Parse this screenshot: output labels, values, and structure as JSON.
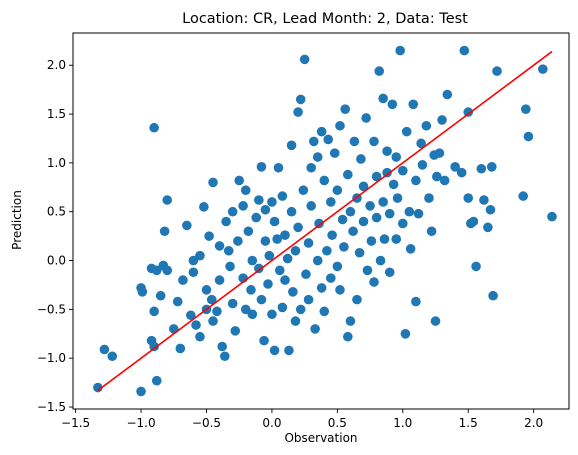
{
  "chart_data": {
    "type": "scatter",
    "title": "Location: CR, Lead Month: 2, Data: Test",
    "xlabel": "Observation",
    "ylabel": "Prediction",
    "xlim": [
      -1.52,
      2.27
    ],
    "ylim": [
      -1.52,
      2.33
    ],
    "xticks": [
      -1.5,
      -1.0,
      -0.5,
      0.0,
      0.5,
      1.0,
      1.5,
      2.0
    ],
    "xtick_labels": [
      "−1.5",
      "−1.0",
      "−0.5",
      "0.0",
      "0.5",
      "1.0",
      "1.5",
      "2.0"
    ],
    "yticks": [
      -1.5,
      -1.0,
      -0.5,
      0.0,
      0.5,
      1.0,
      1.5,
      2.0
    ],
    "ytick_labels": [
      "−1.5",
      "−1.0",
      "−0.5",
      "0.0",
      "0.5",
      "1.0",
      "1.5",
      "2.0"
    ],
    "grid": false,
    "colors": {
      "points": "#1f77b4",
      "fit_line": "#ff0000"
    },
    "fit_line": {
      "x": [
        -1.33,
        2.14
      ],
      "y": [
        -1.33,
        2.14
      ]
    },
    "points": [
      [
        -1.33,
        -1.3
      ],
      [
        -1.28,
        -0.91
      ],
      [
        -1.22,
        -0.98
      ],
      [
        -1.0,
        -1.34
      ],
      [
        -0.88,
        -1.23
      ],
      [
        -0.92,
        -0.82
      ],
      [
        -0.9,
        -0.88
      ],
      [
        -1.0,
        -0.28
      ],
      [
        -0.99,
        -0.32
      ],
      [
        -0.92,
        -0.08
      ],
      [
        -0.9,
        -0.52
      ],
      [
        -0.88,
        -0.1
      ],
      [
        -0.85,
        -0.36
      ],
      [
        -0.83,
        -0.05
      ],
      [
        -0.8,
        -0.1
      ],
      [
        -0.82,
        0.3
      ],
      [
        -0.8,
        0.62
      ],
      [
        -0.9,
        1.36
      ],
      [
        -0.75,
        -0.7
      ],
      [
        -0.72,
        -0.42
      ],
      [
        -0.7,
        -0.9
      ],
      [
        -0.68,
        -0.2
      ],
      [
        -0.65,
        0.36
      ],
      [
        -0.62,
        -0.56
      ],
      [
        -0.6,
        0.0
      ],
      [
        -0.6,
        -0.12
      ],
      [
        -0.58,
        -0.66
      ],
      [
        -0.55,
        -0.78
      ],
      [
        -0.55,
        0.05
      ],
      [
        -0.52,
        0.55
      ],
      [
        -0.5,
        -0.3
      ],
      [
        -0.5,
        -0.5
      ],
      [
        -0.48,
        0.25
      ],
      [
        -0.46,
        -0.4
      ],
      [
        -0.45,
        -0.62
      ],
      [
        -0.45,
        0.8
      ],
      [
        -0.42,
        -0.52
      ],
      [
        -0.4,
        0.15
      ],
      [
        -0.4,
        -0.2
      ],
      [
        -0.38,
        -0.88
      ],
      [
        -0.36,
        -0.98
      ],
      [
        -0.35,
        0.4
      ],
      [
        -0.33,
        0.1
      ],
      [
        -0.32,
        -0.06
      ],
      [
        -0.3,
        0.5
      ],
      [
        -0.3,
        -0.44
      ],
      [
        -0.28,
        -0.72
      ],
      [
        -0.26,
        0.2
      ],
      [
        -0.25,
        0.82
      ],
      [
        -0.22,
        0.56
      ],
      [
        -0.22,
        -0.18
      ],
      [
        -0.2,
        0.72
      ],
      [
        -0.2,
        -0.5
      ],
      [
        -0.18,
        0.3
      ],
      [
        -0.16,
        -0.3
      ],
      [
        -0.15,
        -0.55
      ],
      [
        -0.15,
        0.0
      ],
      [
        -0.12,
        0.44
      ],
      [
        -0.1,
        -0.08
      ],
      [
        -0.1,
        0.62
      ],
      [
        -0.08,
        0.96
      ],
      [
        -0.08,
        -0.4
      ],
      [
        -0.06,
        -0.82
      ],
      [
        -0.05,
        0.2
      ],
      [
        -0.05,
        0.52
      ],
      [
        -0.03,
        -0.24
      ],
      [
        -0.02,
        0.05
      ],
      [
        0.0,
        0.6
      ],
      [
        0.0,
        -0.55
      ],
      [
        0.02,
        0.4
      ],
      [
        0.02,
        -0.92
      ],
      [
        0.04,
        0.22
      ],
      [
        0.05,
        0.95
      ],
      [
        0.06,
        -0.1
      ],
      [
        0.08,
        0.66
      ],
      [
        0.08,
        -0.48
      ],
      [
        0.1,
        0.26
      ],
      [
        0.1,
        -0.2
      ],
      [
        0.12,
        0.02
      ],
      [
        0.13,
        -0.92
      ],
      [
        0.15,
        0.5
      ],
      [
        0.15,
        1.18
      ],
      [
        0.16,
        -0.32
      ],
      [
        0.18,
        -0.62
      ],
      [
        0.18,
        0.1
      ],
      [
        0.2,
        0.34
      ],
      [
        0.2,
        1.52
      ],
      [
        0.22,
        -0.5
      ],
      [
        0.22,
        1.65
      ],
      [
        0.24,
        0.72
      ],
      [
        0.25,
        2.06
      ],
      [
        0.26,
        -0.14
      ],
      [
        0.28,
        0.18
      ],
      [
        0.28,
        -0.4
      ],
      [
        0.3,
        0.95
      ],
      [
        0.3,
        0.56
      ],
      [
        0.32,
        1.22
      ],
      [
        0.33,
        -0.7
      ],
      [
        0.35,
        0.0
      ],
      [
        0.35,
        1.06
      ],
      [
        0.36,
        0.38
      ],
      [
        0.38,
        -0.28
      ],
      [
        0.38,
        1.32
      ],
      [
        0.4,
        0.82
      ],
      [
        0.4,
        -0.52
      ],
      [
        0.42,
        0.1
      ],
      [
        0.43,
        1.24
      ],
      [
        0.45,
        0.6
      ],
      [
        0.45,
        -0.18
      ],
      [
        0.46,
        0.26
      ],
      [
        0.48,
        1.1
      ],
      [
        0.5,
        -0.06
      ],
      [
        0.5,
        0.72
      ],
      [
        0.52,
        1.38
      ],
      [
        0.52,
        -0.3
      ],
      [
        0.54,
        0.42
      ],
      [
        0.55,
        0.14
      ],
      [
        0.56,
        1.55
      ],
      [
        0.58,
        -0.78
      ],
      [
        0.58,
        0.88
      ],
      [
        0.6,
        0.5
      ],
      [
        0.6,
        -0.62
      ],
      [
        0.62,
        0.3
      ],
      [
        0.63,
        1.22
      ],
      [
        0.65,
        0.64
      ],
      [
        0.65,
        -0.4
      ],
      [
        0.67,
        0.08
      ],
      [
        0.68,
        1.04
      ],
      [
        0.7,
        0.4
      ],
      [
        0.7,
        0.76
      ],
      [
        0.72,
        1.46
      ],
      [
        0.73,
        -0.1
      ],
      [
        0.75,
        0.56
      ],
      [
        0.76,
        0.2
      ],
      [
        0.78,
        1.22
      ],
      [
        0.78,
        -0.22
      ],
      [
        0.8,
        0.86
      ],
      [
        0.8,
        0.44
      ],
      [
        0.82,
        1.94
      ],
      [
        0.83,
        0.0
      ],
      [
        0.85,
        1.66
      ],
      [
        0.85,
        0.6
      ],
      [
        0.86,
        0.22
      ],
      [
        0.88,
        1.12
      ],
      [
        0.88,
        0.9
      ],
      [
        0.9,
        -0.12
      ],
      [
        0.9,
        0.48
      ],
      [
        0.92,
        1.6
      ],
      [
        0.93,
        0.78
      ],
      [
        0.95,
        0.22
      ],
      [
        0.95,
        1.06
      ],
      [
        0.96,
        0.64
      ],
      [
        0.98,
        2.15
      ],
      [
        1.0,
        0.38
      ],
      [
        1.0,
        0.92
      ],
      [
        1.02,
        -0.75
      ],
      [
        1.03,
        1.32
      ],
      [
        1.05,
        0.5
      ],
      [
        1.06,
        0.12
      ],
      [
        1.08,
        1.6
      ],
      [
        1.1,
        -0.42
      ],
      [
        1.1,
        0.82
      ],
      [
        1.12,
        0.48
      ],
      [
        1.14,
        1.2
      ],
      [
        1.15,
        0.98
      ],
      [
        1.18,
        1.38
      ],
      [
        1.2,
        0.64
      ],
      [
        1.22,
        0.3
      ],
      [
        1.24,
        1.08
      ],
      [
        1.25,
        -0.62
      ],
      [
        1.26,
        0.86
      ],
      [
        1.28,
        1.1
      ],
      [
        1.3,
        1.44
      ],
      [
        1.32,
        0.82
      ],
      [
        1.34,
        1.7
      ],
      [
        1.4,
        0.96
      ],
      [
        1.45,
        0.9
      ],
      [
        1.47,
        2.15
      ],
      [
        1.5,
        1.52
      ],
      [
        1.5,
        0.64
      ],
      [
        1.52,
        0.38
      ],
      [
        1.54,
        0.4
      ],
      [
        1.56,
        -0.06
      ],
      [
        1.6,
        0.94
      ],
      [
        1.62,
        0.62
      ],
      [
        1.65,
        0.34
      ],
      [
        1.67,
        0.52
      ],
      [
        1.69,
        -0.36
      ],
      [
        1.72,
        1.94
      ],
      [
        1.92,
        0.66
      ],
      [
        1.94,
        1.55
      ],
      [
        1.96,
        1.27
      ],
      [
        2.07,
        1.96
      ],
      [
        2.14,
        0.45
      ],
      [
        1.68,
        0.96
      ]
    ]
  }
}
